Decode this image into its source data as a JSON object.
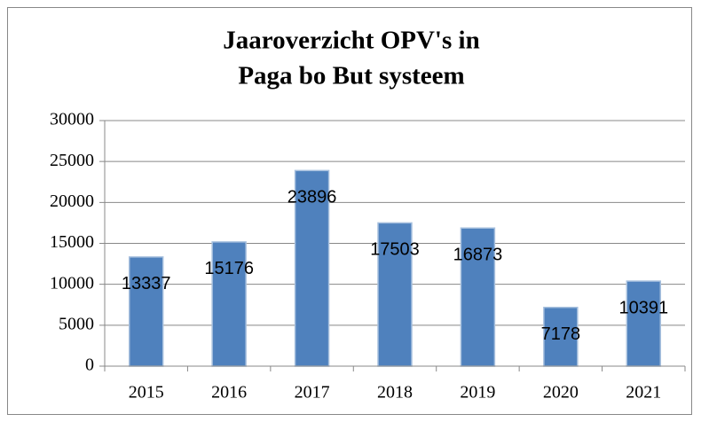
{
  "chart_data": {
    "type": "bar",
    "title": [
      "Jaaroverzicht OPV's in",
      "Paga bo But systeem"
    ],
    "categories": [
      "2015",
      "2016",
      "2017",
      "2018",
      "2019",
      "2020",
      "2021"
    ],
    "values": [
      13337,
      15176,
      23896,
      17503,
      16873,
      7178,
      10391
    ],
    "color": "#4f81bd",
    "ylim": [
      0,
      30000
    ],
    "yticks": [
      0,
      5000,
      10000,
      15000,
      20000,
      25000,
      30000
    ],
    "grid": true,
    "data_labels": true
  }
}
